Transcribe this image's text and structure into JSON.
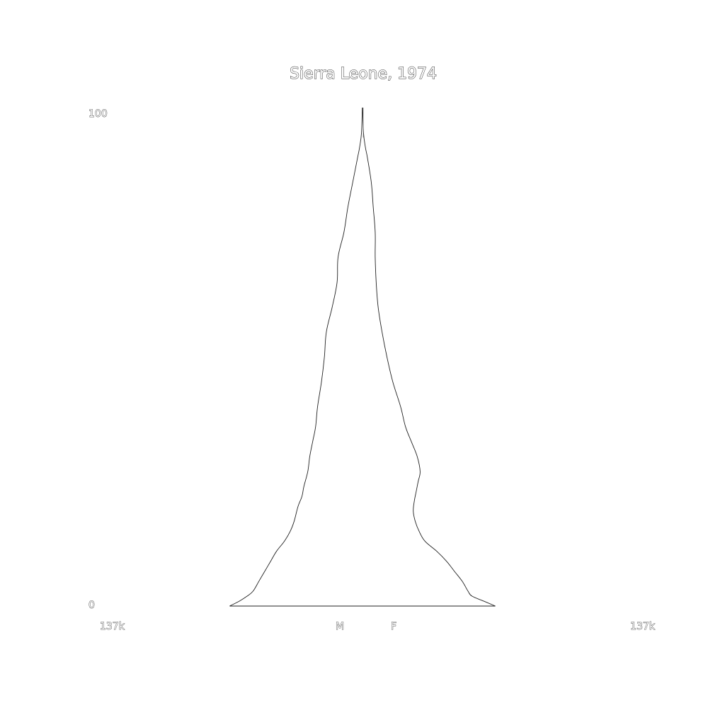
{
  "chart_data": {
    "type": "area",
    "title": "Sierra Leone, 1974",
    "y_ticks": [
      "100",
      "0"
    ],
    "x_ticks": [
      "137k",
      "137k"
    ],
    "x_range": [
      -137000,
      137000
    ],
    "y_range": [
      0,
      100
    ],
    "series": [
      {
        "name": "M",
        "age": [
          0,
          1,
          2,
          3,
          5,
          7,
          9,
          11,
          13,
          15,
          17,
          20,
          22,
          24,
          27,
          30,
          33,
          36,
          40,
          45,
          50,
          55,
          60,
          65,
          70,
          75,
          80,
          85,
          90,
          92,
          95,
          100
        ],
        "values": [
          68000,
          63000,
          59000,
          56000,
          53000,
          50000,
          47000,
          44000,
          40000,
          37000,
          35000,
          33000,
          31000,
          30000,
          28000,
          27000,
          25500,
          24000,
          23000,
          21000,
          19500,
          18500,
          15500,
          13000,
          12500,
          9500,
          7500,
          5000,
          2500,
          1500,
          500,
          100
        ]
      },
      {
        "name": "F",
        "age": [
          0,
          1,
          2,
          3,
          5,
          7,
          9,
          11,
          13,
          15,
          17,
          19,
          21,
          23,
          25,
          27,
          30,
          33,
          36,
          40,
          45,
          50,
          55,
          60,
          65,
          70,
          75,
          80,
          85,
          90,
          92,
          95,
          100
        ],
        "values": [
          68000,
          62000,
          56000,
          54000,
          51000,
          47000,
          43000,
          38000,
          32000,
          29000,
          27000,
          26000,
          26500,
          27500,
          28500,
          29500,
          28000,
          25000,
          22000,
          19500,
          15500,
          12500,
          10000,
          8000,
          7000,
          6500,
          6500,
          5500,
          4500,
          2500,
          1500,
          500,
          100
        ]
      }
    ],
    "grid": false,
    "legend": "none"
  }
}
